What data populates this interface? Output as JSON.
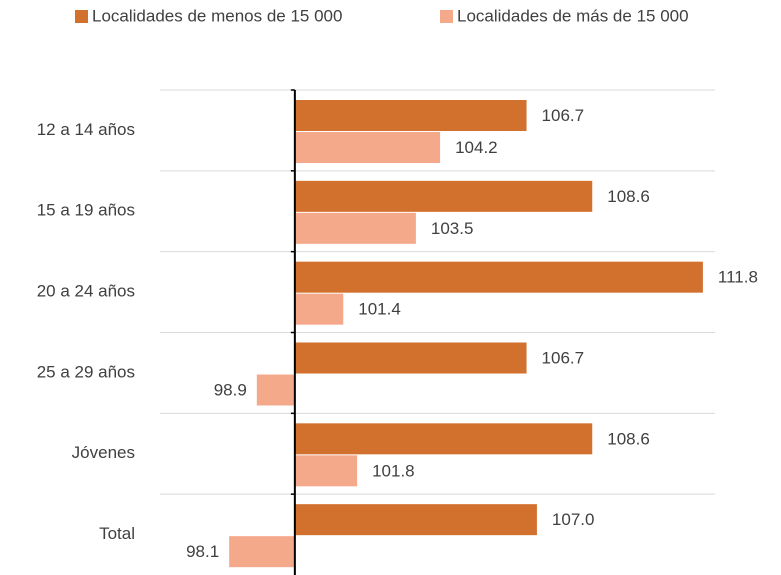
{
  "chart_data": {
    "type": "hbar",
    "categories": [
      "12 a 14 años",
      "15 a 19 años",
      "20 a 24 años",
      "25 a 29 años",
      "Jóvenes",
      "Total"
    ],
    "series": [
      {
        "name": "Localidades de menos de 15 000",
        "color": "#d2702d",
        "values": [
          106.7,
          108.6,
          111.8,
          106.7,
          108.6,
          107.0
        ],
        "value_labels": [
          "106.7",
          "108.6",
          "111.8",
          "106.7",
          "108.6",
          "107.0"
        ]
      },
      {
        "name": "Localidades de más de 15 000",
        "color": "#f4a98a",
        "values": [
          104.2,
          103.5,
          101.4,
          98.9,
          101.8,
          98.1
        ],
        "value_labels": [
          "104.2",
          "103.5",
          "101.4",
          "98.9",
          "101.8",
          "98.1"
        ]
      }
    ],
    "xlim": [
      96.1,
      112.15
    ],
    "baseline": 100,
    "legend": "top"
  }
}
